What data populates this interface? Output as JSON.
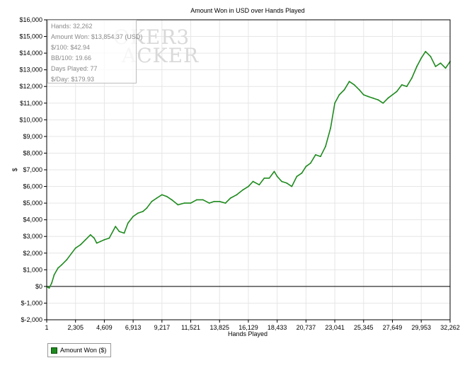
{
  "chart_data": {
    "type": "line",
    "title": "Amount Won in USD over Hands Played",
    "xlabel": "Hands Played",
    "ylabel": "$",
    "xlim": [
      1,
      32262
    ],
    "ylim": [
      -2000,
      16000
    ],
    "x_ticks": [
      1,
      2305,
      4609,
      6913,
      9217,
      11521,
      13825,
      16129,
      18433,
      20737,
      23041,
      25345,
      27649,
      29953,
      32262
    ],
    "x_tick_labels": [
      "1",
      "2,305",
      "4,609",
      "6,913",
      "9,217",
      "11,521",
      "13,825",
      "16,129",
      "18,433",
      "20,737",
      "23,041",
      "25,345",
      "27,649",
      "29,953",
      "32,262"
    ],
    "y_ticks": [
      -2000,
      -1000,
      0,
      1000,
      2000,
      3000,
      4000,
      5000,
      6000,
      7000,
      8000,
      9000,
      10000,
      11000,
      12000,
      13000,
      14000,
      15000,
      16000
    ],
    "y_tick_labels": [
      "$-2,000",
      "$-1,000",
      "$0",
      "$1,000",
      "$2,000",
      "$3,000",
      "$4,000",
      "$5,000",
      "$6,000",
      "$7,000",
      "$8,000",
      "$9,000",
      "$10,000",
      "$11,000",
      "$12,000",
      "$13,000",
      "$14,000",
      "$15,000",
      "$16,000"
    ],
    "grid": true,
    "legend_position": "bottom-left",
    "series": [
      {
        "name": "Amount Won ($)",
        "color": "#1e8a1e",
        "x": [
          1,
          200,
          400,
          600,
          900,
          1200,
          1600,
          2000,
          2305,
          2700,
          3100,
          3500,
          3800,
          4000,
          4300,
          4609,
          5000,
          5500,
          5800,
          6200,
          6500,
          6913,
          7300,
          7700,
          8000,
          8400,
          8800,
          9217,
          9600,
          10000,
          10500,
          11000,
          11521,
          12000,
          12500,
          13000,
          13400,
          13825,
          14300,
          14700,
          15200,
          15700,
          16129,
          16500,
          17000,
          17400,
          17800,
          18200,
          18433,
          18800,
          19200,
          19600,
          20000,
          20400,
          20737,
          21100,
          21500,
          21900,
          22300,
          22700,
          23041,
          23400,
          23800,
          24200,
          24600,
          25000,
          25345,
          25700,
          26100,
          26500,
          26900,
          27300,
          27649,
          28000,
          28400,
          28800,
          29200,
          29600,
          29953,
          30300,
          30700,
          31100,
          31500,
          31900,
          32262
        ],
        "y": [
          0,
          -100,
          200,
          700,
          1100,
          1300,
          1600,
          2000,
          2300,
          2500,
          2800,
          3100,
          2900,
          2600,
          2700,
          2800,
          2900,
          3600,
          3300,
          3200,
          3800,
          4200,
          4400,
          4500,
          4700,
          5100,
          5300,
          5500,
          5400,
          5200,
          4900,
          5000,
          5000,
          5200,
          5200,
          5000,
          5100,
          5100,
          5000,
          5300,
          5500,
          5800,
          6000,
          6300,
          6100,
          6500,
          6500,
          6900,
          6600,
          6300,
          6200,
          6000,
          6600,
          6800,
          7200,
          7400,
          7900,
          7800,
          8400,
          9500,
          11000,
          11500,
          11800,
          12300,
          12100,
          11800,
          11500,
          11400,
          11300,
          11200,
          11000,
          11300,
          11500,
          11700,
          12100,
          12000,
          12500,
          13200,
          13700,
          14100,
          13800,
          13200,
          13400,
          13100,
          13500
        ]
      }
    ]
  },
  "stats": [
    "Hands: 32,262",
    "Amount Won: $13,854.37 (USD)",
    "$/100: $42.94",
    "BB/100: 19.66",
    "Days Played: 77",
    "$/Day: $179.93"
  ],
  "watermark": {
    "line1": "OKER3",
    "line2": "ACKER"
  }
}
